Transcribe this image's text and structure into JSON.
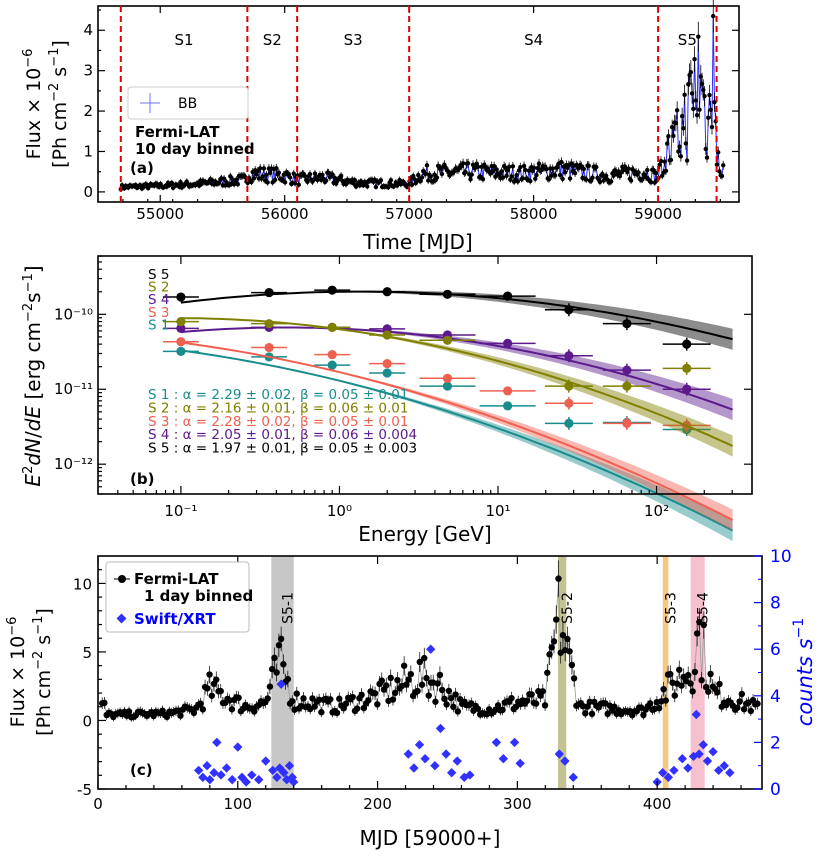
{
  "chart_data": [
    {
      "type": "scatter",
      "panel": "(a)",
      "xlabel": "Time [MJD]",
      "ylabel_line1": "Flux × 10",
      "ylabel_exp": "−6",
      "ylabel_line2": "[Ph cm",
      "ylabel_units": "[Ph cm⁻² s⁻¹]",
      "xlim": [
        54500,
        59650
      ],
      "ylim": [
        -0.25,
        4.6
      ],
      "xticks": [
        55000,
        56000,
        57000,
        58000,
        59000
      ],
      "yticks": [
        0,
        1,
        2,
        3,
        4
      ],
      "annotation_line1": "Fermi-LAT",
      "annotation_line2": "10 day binned",
      "legend_label": "BB",
      "segments": [
        {
          "name": "S1",
          "start": 54683,
          "end": 55700
        },
        {
          "name": "S2",
          "start": 55700,
          "end": 56100
        },
        {
          "name": "S3",
          "start": 56100,
          "end": 57000
        },
        {
          "name": "S4",
          "start": 57000,
          "end": 59000
        },
        {
          "name": "S5",
          "start": 59000,
          "end": 59470
        }
      ],
      "boundaries": [
        54683,
        55700,
        56100,
        57000,
        59000,
        59470
      ],
      "profile": [
        [
          54683,
          0.12
        ],
        [
          55000,
          0.15
        ],
        [
          55300,
          0.2
        ],
        [
          55690,
          0.3
        ],
        [
          55710,
          0.45
        ],
        [
          56000,
          0.4
        ],
        [
          56100,
          0.3
        ],
        [
          56300,
          0.35
        ],
        [
          56600,
          0.22
        ],
        [
          57000,
          0.2
        ],
        [
          57100,
          0.45
        ],
        [
          57500,
          0.5
        ],
        [
          57900,
          0.45
        ],
        [
          58200,
          0.55
        ],
        [
          58600,
          0.4
        ],
        [
          58900,
          0.5
        ],
        [
          59000,
          0.35
        ],
        [
          59050,
          0.9
        ],
        [
          59150,
          1.4
        ],
        [
          59250,
          2.2
        ],
        [
          59330,
          3.3
        ],
        [
          59400,
          1.6
        ],
        [
          59445,
          3.9
        ],
        [
          59470,
          0.8
        ],
        [
          59530,
          0.65
        ]
      ]
    },
    {
      "type": "line",
      "panel": "(b)",
      "xlabel": "Energy [GeV]",
      "ylabel": "E²dN/dE [erg cm⁻²s⁻¹]",
      "xscale": "log",
      "yscale": "log",
      "xlim": [
        0.03,
        400
      ],
      "ylim": [
        4e-13,
        6e-10
      ],
      "xtick_labels": [
        "10⁻¹",
        "10⁰",
        "10¹",
        "10²"
      ],
      "ytick_labels": [
        "10⁻¹²",
        "10⁻¹¹",
        "10⁻¹⁰"
      ],
      "series": [
        {
          "name": "S 5",
          "color": "#000000",
          "N0": 2e-10,
          "alpha": 1.97,
          "beta": 0.05,
          "peak": 1.0,
          "points": [
            [
              0.1,
              1.7e-10
            ],
            [
              0.36,
              1.95e-10
            ],
            [
              0.9,
              2.1e-10
            ],
            [
              2.0,
              2e-10
            ],
            [
              4.8,
              1.85e-10
            ],
            [
              11.5,
              1.75e-10
            ],
            [
              28,
              1.15e-10
            ],
            [
              65,
              7.5e-11
            ],
            [
              155,
              4e-11
            ]
          ],
          "fit_label": "S 5 : α = 1.97 ± 0.01, β =  0.05 ± 0.003"
        },
        {
          "name": "S 2",
          "color": "#808000",
          "N0": 8e-11,
          "alpha": 2.16,
          "beta": 0.06,
          "peak": 0.35,
          "points": [
            [
              0.1,
              8e-11
            ],
            [
              0.36,
              7.5e-11
            ],
            [
              0.9,
              6.7e-11
            ],
            [
              2.0,
              5.3e-11
            ],
            [
              4.8,
              4.5e-11
            ],
            [
              28,
              1.1e-11
            ],
            [
              65,
              1.1e-11
            ],
            [
              155,
              1.9e-11
            ]
          ],
          "fit_label": "S 2 : α = 2.16 ± 0.01, β =  0.06 ± 0.01"
        },
        {
          "name": "S 4",
          "color": "#5c1a8c",
          "N0": 6.6e-11,
          "alpha": 2.05,
          "beta": 0.06,
          "peak": 0.7,
          "points": [
            [
              0.1,
              6.5e-11
            ],
            [
              0.36,
              6.7e-11
            ],
            [
              0.9,
              6.7e-11
            ],
            [
              2.0,
              6.4e-11
            ],
            [
              4.8,
              5.3e-11
            ],
            [
              11.5,
              4.1e-11
            ],
            [
              28,
              2.8e-11
            ],
            [
              65,
              1.8e-11
            ],
            [
              155,
              1e-11
            ]
          ],
          "fit_label": "S 4 : α = 2.05 ± 0.01, β =  0.06 ± 0.004"
        },
        {
          "name": "S 3",
          "color": "#f06050",
          "N0": 4.2e-11,
          "alpha": 2.28,
          "beta": 0.05,
          "peak": 0.1,
          "points": [
            [
              0.1,
              4.3e-11
            ],
            [
              0.36,
              3.6e-11
            ],
            [
              0.9,
              2.9e-11
            ],
            [
              2.0,
              2.2e-11
            ],
            [
              4.8,
              1.4e-11
            ],
            [
              11.5,
              9.5e-12
            ],
            [
              28,
              6.5e-12
            ],
            [
              65,
              3.5e-12
            ],
            [
              155,
              3.3e-12
            ]
          ],
          "fit_label": "S 3 : α = 2.28 ± 0.02, β =  0.05 ± 0.01"
        },
        {
          "name": "S 1",
          "color": "#1a8c8c",
          "N0": 3.3e-11,
          "alpha": 2.29,
          "beta": 0.05,
          "peak": 0.1,
          "points": [
            [
              0.1,
              3.2e-11
            ],
            [
              0.36,
              2.7e-11
            ],
            [
              0.9,
              2.1e-11
            ],
            [
              2.0,
              1.65e-11
            ],
            [
              4.8,
              1.1e-11
            ],
            [
              11.5,
              6e-12
            ],
            [
              28,
              3.5e-12
            ],
            [
              65,
              3.6e-12
            ],
            [
              155,
              2.9e-12
            ]
          ],
          "fit_label": "S 1 : α = 2.29 ± 0.02, β =  0.05 ± 0.01"
        }
      ]
    },
    {
      "type": "scatter",
      "panel": "(c)",
      "xlabel": "MJD [59000+]",
      "ylabel": "Flux × 10⁻⁶ [Ph cm⁻² s⁻¹]",
      "y2label": "counts s⁻¹",
      "xlim": [
        0,
        475
      ],
      "ylim": [
        -5,
        12
      ],
      "y2lim": [
        0,
        10
      ],
      "xticks": [
        0,
        100,
        200,
        300,
        400
      ],
      "yticks": [
        -5,
        0,
        5,
        10
      ],
      "y2ticks": [
        0,
        2,
        4,
        6,
        8,
        10
      ],
      "legend": [
        {
          "label": "Fermi-LAT",
          "sublabel": "1 day binned",
          "color": "#000000"
        },
        {
          "label": "Swift/XRT",
          "color": "#0000ff"
        }
      ],
      "flares": [
        {
          "name": "S5-1",
          "start": 124,
          "end": 140,
          "color": "#bdbdbd"
        },
        {
          "name": "S5-2",
          "start": 329,
          "end": 335,
          "color": "#b8b880"
        },
        {
          "name": "S5-3",
          "start": 404,
          "end": 408,
          "color": "#f5c06a"
        },
        {
          "name": "S5-4",
          "start": 424,
          "end": 434,
          "color": "#f5b5c5"
        }
      ],
      "fermi_profile": [
        [
          5,
          0.4
        ],
        [
          50,
          0.5
        ],
        [
          70,
          0.8
        ],
        [
          80,
          2.3
        ],
        [
          90,
          1.8
        ],
        [
          105,
          1.0
        ],
        [
          120,
          1.3
        ],
        [
          130,
          4.3
        ],
        [
          140,
          1.5
        ],
        [
          170,
          1.0
        ],
        [
          200,
          1.8
        ],
        [
          230,
          3.2
        ],
        [
          245,
          2.5
        ],
        [
          260,
          1.0
        ],
        [
          280,
          0.8
        ],
        [
          300,
          1.3
        ],
        [
          320,
          1.5
        ],
        [
          330,
          7.8
        ],
        [
          335,
          5.0
        ],
        [
          345,
          1.0
        ],
        [
          390,
          0.7
        ],
        [
          400,
          1.5
        ],
        [
          410,
          2.5
        ],
        [
          425,
          4.0
        ],
        [
          430,
          6.3
        ],
        [
          440,
          2.0
        ],
        [
          470,
          1.0
        ]
      ],
      "xrt_points": [
        [
          72,
          0.8
        ],
        [
          75,
          0.5
        ],
        [
          78,
          1.0
        ],
        [
          80,
          0.4
        ],
        [
          83,
          0.7
        ],
        [
          85,
          2.0
        ],
        [
          88,
          0.6
        ],
        [
          92,
          0.9
        ],
        [
          96,
          0.4
        ],
        [
          100,
          1.8
        ],
        [
          103,
          0.5
        ],
        [
          106,
          0.3
        ],
        [
          110,
          0.6
        ],
        [
          115,
          0.4
        ],
        [
          120,
          1.2
        ],
        [
          125,
          0.8
        ],
        [
          128,
          0.5
        ],
        [
          130,
          0.9
        ],
        [
          131,
          4.5
        ],
        [
          133,
          0.7
        ],
        [
          135,
          0.4
        ],
        [
          137,
          1.0
        ],
        [
          139,
          0.5
        ],
        [
          140,
          0.3
        ],
        [
          222,
          1.5
        ],
        [
          226,
          0.9
        ],
        [
          230,
          1.9
        ],
        [
          234,
          1.3
        ],
        [
          238,
          6.0
        ],
        [
          241,
          1.0
        ],
        [
          245,
          2.6
        ],
        [
          249,
          1.5
        ],
        [
          253,
          0.7
        ],
        [
          257,
          1.2
        ],
        [
          262,
          0.5
        ],
        [
          266,
          0.6
        ],
        [
          285,
          2.0
        ],
        [
          290,
          1.3
        ],
        [
          298,
          2.0
        ],
        [
          302,
          1.1
        ],
        [
          330,
          1.5
        ],
        [
          334,
          1.2
        ],
        [
          340,
          0.5
        ],
        [
          400,
          0.3
        ],
        [
          404,
          0.7
        ],
        [
          408,
          0.5
        ],
        [
          412,
          0.8
        ],
        [
          418,
          1.3
        ],
        [
          422,
          0.9
        ],
        [
          426,
          1.4
        ],
        [
          428,
          3.2
        ],
        [
          430,
          1.5
        ],
        [
          433,
          1.9
        ],
        [
          436,
          1.2
        ],
        [
          440,
          1.6
        ],
        [
          444,
          0.8
        ],
        [
          448,
          1.0
        ],
        [
          452,
          0.7
        ]
      ]
    }
  ],
  "labels": {
    "a_xlabel": "Time [MJD]",
    "a_y1": "Flux × 10",
    "a_y1exp": "−6",
    "a_y2": "[Ph cm",
    "b_xlabel": "Energy [GeV]",
    "c_xlabel": "MJD [59000+]",
    "c_y2label": "counts s",
    "panel_a": "(a)",
    "panel_b": "(b)",
    "panel_c": "(c)"
  }
}
